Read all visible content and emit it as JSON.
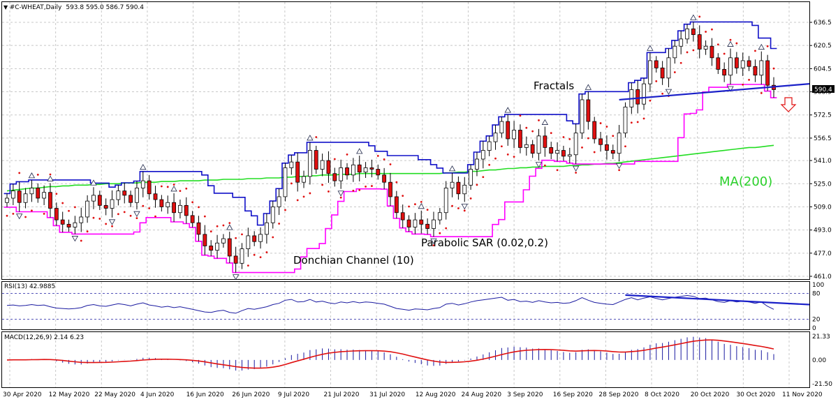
{
  "header": {
    "instrument": "#C-WHEAT,Daily",
    "ohlc": "593.8 595.0 586.7 590.4"
  },
  "price_axis": {
    "ticks": [
      "636.5",
      "620.5",
      "604.5",
      "588.5",
      "572.5",
      "556.5",
      "541.0",
      "525.0",
      "509.0",
      "493.0",
      "477.0",
      "461.0"
    ],
    "current_price": "590.4"
  },
  "date_axis": {
    "ticks": [
      "30 Apr 2020",
      "12 May 2020",
      "22 May 2020",
      "4 Jun 2020",
      "16 Jun 2020",
      "26 Jun 2020",
      "9 Jul 2020",
      "21 Jul 2020",
      "31 Jul 2020",
      "12 Aug 2020",
      "24 Aug 2020",
      "3 Sep 2020",
      "16 Sep 2020",
      "28 Sep 2020",
      "8 Oct 2020",
      "20 Oct 2020",
      "30 Oct 2020",
      "11 Nov 2020"
    ]
  },
  "annotations": {
    "fractals": "Fractals",
    "parabolic_sar": "Parabolic SAR (0.02,0.2)",
    "donchian": "Donchian Channel (10)",
    "ma": "MA(200)"
  },
  "rsi_panel": {
    "title": "RSI(13) 42.9885",
    "ticks": [
      "100",
      "80",
      "20",
      "0"
    ]
  },
  "macd_panel": {
    "title": "MACD(12,26,9) 2.14 6.23",
    "ticks": [
      "21.33",
      "0.00",
      "-21.50"
    ]
  },
  "colors": {
    "bull": "#ffffff",
    "bear": "#e01010",
    "donchian_upper": "#1010c8",
    "donchian_lower": "#ff00ff",
    "sar": "#e01010",
    "ma": "#22dd22",
    "trendline": "#1a20c8",
    "rsi": "#1a1aa0",
    "macd_hist": "#1a1aa0",
    "macd_signal": "#e01010"
  },
  "chart_data": {
    "type": "candlestick",
    "timeframe": "Daily",
    "ylim": [
      461.0,
      644.0
    ],
    "grid": true,
    "closes": [
      515,
      520,
      512,
      518,
      522,
      515,
      519,
      508,
      500,
      497,
      495,
      498,
      502,
      513,
      517,
      510,
      508,
      514,
      520,
      517,
      512,
      522,
      527,
      518,
      514,
      509,
      512,
      505,
      510,
      503,
      498,
      490,
      482,
      479,
      484,
      487,
      475,
      470,
      480,
      489,
      485,
      490,
      498,
      509,
      516,
      536,
      540,
      526,
      530,
      548,
      535,
      541,
      532,
      527,
      536,
      531,
      538,
      533,
      536,
      535,
      531,
      526,
      516,
      505,
      500,
      495,
      500,
      497,
      494,
      500,
      505,
      522,
      526,
      518,
      524,
      535,
      542,
      548,
      554,
      560,
      568,
      556,
      562,
      550,
      552,
      546,
      558,
      550,
      546,
      548,
      544,
      545,
      560,
      583,
      568,
      556,
      552,
      548,
      546,
      560,
      578,
      590,
      580,
      594,
      610,
      605,
      598,
      612,
      620,
      625,
      632,
      628,
      618,
      620,
      612,
      604,
      600,
      612,
      605,
      610,
      606,
      600,
      610,
      593,
      590
    ],
    "ma200": [
      520,
      520.5,
      521,
      521.5,
      522,
      522,
      522.5,
      523,
      523,
      523.5,
      523.5,
      524,
      524,
      524,
      524.5,
      524.5,
      525,
      525,
      525,
      525.5,
      525.5,
      525.5,
      526,
      526,
      526,
      526.5,
      526.5,
      526.5,
      527,
      527,
      527,
      527,
      527.5,
      527.5,
      527.5,
      528,
      528,
      528,
      528,
      528.5,
      528.5,
      528.5,
      529,
      529,
      529,
      529.5,
      529.5,
      530,
      530,
      530.5,
      530.5,
      531,
      531,
      531,
      531.5,
      531.5,
      531.5,
      532,
      532,
      532,
      532,
      532,
      532,
      532,
      532,
      532,
      532,
      532,
      532,
      532,
      532,
      532.5,
      532.5,
      533,
      533,
      533.5,
      533.5,
      534,
      534.5,
      534.5,
      535,
      535.5,
      535.5,
      536,
      536,
      536.5,
      536.5,
      537,
      537,
      537,
      537,
      537.5,
      537.5,
      538,
      538,
      538.5,
      538.5,
      539,
      539,
      539.5,
      540,
      540.5,
      541,
      541.5,
      542,
      542.5,
      543,
      543.5,
      544,
      544.5,
      545,
      545.5,
      546,
      546.5,
      547,
      547.5,
      548,
      548.5,
      549,
      549.5,
      550,
      550,
      550.5,
      551,
      551.5
    ],
    "rsi": [
      52,
      53,
      51,
      52,
      54,
      52,
      53,
      49,
      46,
      45,
      44,
      45,
      47,
      52,
      54,
      51,
      50,
      53,
      56,
      54,
      51,
      55,
      58,
      53,
      51,
      48,
      50,
      47,
      49,
      46,
      43,
      40,
      37,
      36,
      39,
      41,
      36,
      34,
      40,
      45,
      43,
      46,
      49,
      54,
      57,
      64,
      66,
      60,
      61,
      66,
      60,
      62,
      58,
      56,
      60,
      58,
      61,
      58,
      60,
      59,
      57,
      55,
      50,
      45,
      43,
      41,
      44,
      43,
      42,
      45,
      47,
      55,
      57,
      53,
      56,
      60,
      63,
      65,
      67,
      69,
      71,
      64,
      66,
      61,
      62,
      59,
      63,
      60,
      58,
      59,
      57,
      58,
      63,
      70,
      64,
      59,
      57,
      55,
      54,
      60,
      66,
      70,
      65,
      69,
      72,
      68,
      65,
      68,
      71,
      73,
      75,
      73,
      68,
      69,
      65,
      61,
      59,
      63,
      60,
      62,
      60,
      57,
      60,
      50,
      43
    ]
  }
}
